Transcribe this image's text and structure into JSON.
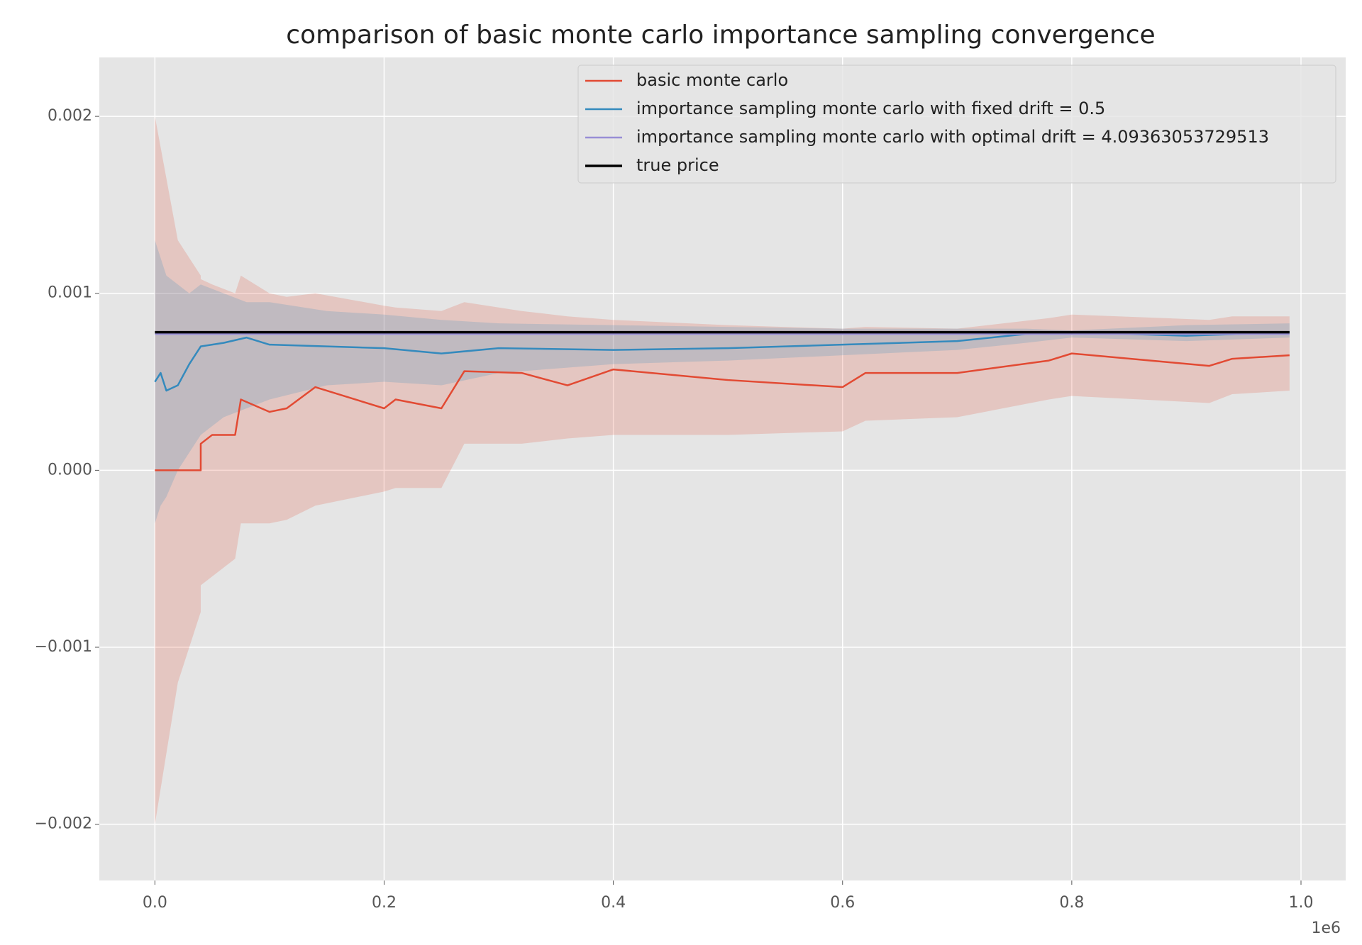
{
  "chart_data": {
    "type": "line",
    "title": "comparison of basic monte carlo importance sampling convergence",
    "x_offset_label": "1e6",
    "xlim": [
      -0.0485,
      1.039
    ],
    "ylim": [
      -0.002318,
      0.002333
    ],
    "xticks": [
      {
        "value": 0,
        "label": "0.0"
      },
      0.2,
      0.4,
      0.6,
      0.8,
      {
        "value": 1,
        "label": "1.0"
      }
    ],
    "yticks": [
      {
        "value": -0.002,
        "label": "−0.002"
      },
      {
        "value": -0.001,
        "label": "−0.001"
      },
      {
        "value": 0,
        "label": "0.000"
      },
      0.001,
      0.002
    ],
    "grid": true,
    "legend": "upper right",
    "series": [
      {
        "name": "basic monte carlo",
        "color": "#e24a33",
        "x": [
          0,
          0.02,
          0.04,
          0.04,
          0.05,
          0.07,
          0.075,
          0.1,
          0.115,
          0.14,
          0.2,
          0.21,
          0.25,
          0.27,
          0.32,
          0.36,
          0.4,
          0.5,
          0.6,
          0.62,
          0.7,
          0.78,
          0.8,
          0.92,
          0.94,
          0.99
        ],
        "values": [
          0,
          0,
          0,
          0.00015,
          0.0002,
          0.0002,
          0.0004,
          0.00033,
          0.00035,
          0.00047,
          0.00035,
          0.0004,
          0.00035,
          0.00056,
          0.00055,
          0.00048,
          0.00057,
          0.00051,
          0.00047,
          0.00055,
          0.00055,
          0.00062,
          0.00066,
          0.00059,
          0.00063,
          0.00065
        ],
        "upper": [
          0.002,
          0.0013,
          0.0011,
          0.00108,
          0.00105,
          0.001,
          0.0011,
          0.001,
          0.00098,
          0.001,
          0.00093,
          0.00092,
          0.0009,
          0.00095,
          0.0009,
          0.00087,
          0.00085,
          0.00082,
          0.0008,
          0.00081,
          0.0008,
          0.00086,
          0.00088,
          0.00085,
          0.00087,
          0.00087
        ],
        "lower": [
          -0.002,
          -0.0012,
          -0.0008,
          -0.00065,
          -0.0006,
          -0.0005,
          -0.0003,
          -0.0003,
          -0.00028,
          -0.0002,
          -0.00012,
          -0.0001,
          -0.0001,
          0.00015,
          0.00015,
          0.00018,
          0.0002,
          0.0002,
          0.00022,
          0.00028,
          0.0003,
          0.0004,
          0.00042,
          0.00038,
          0.00043,
          0.00045
        ]
      },
      {
        "name": "importance sampling monte carlo with fixed drift = 0.5",
        "color": "#348abd",
        "x": [
          0,
          0.005,
          0.01,
          0.02,
          0.03,
          0.04,
          0.06,
          0.08,
          0.1,
          0.15,
          0.2,
          0.25,
          0.3,
          0.4,
          0.5,
          0.6,
          0.7,
          0.76,
          0.8,
          0.9,
          0.99
        ],
        "values": [
          0.0005,
          0.00055,
          0.00045,
          0.00048,
          0.0006,
          0.0007,
          0.00072,
          0.00075,
          0.00071,
          0.0007,
          0.00069,
          0.00066,
          0.00069,
          0.00068,
          0.00069,
          0.00071,
          0.00073,
          0.00077,
          0.00078,
          0.00076,
          0.00078
        ],
        "upper": [
          0.0013,
          0.0012,
          0.0011,
          0.00105,
          0.001,
          0.00105,
          0.001,
          0.00095,
          0.00095,
          0.0009,
          0.00088,
          0.00085,
          0.00083,
          0.00082,
          0.00081,
          0.0008,
          0.0008,
          0.0008,
          0.00079,
          0.00082,
          0.00083
        ],
        "lower": [
          -0.0003,
          -0.0002,
          -0.00015,
          0.0,
          0.0001,
          0.0002,
          0.0003,
          0.00035,
          0.0004,
          0.00048,
          0.0005,
          0.00048,
          0.00055,
          0.0006,
          0.00062,
          0.00065,
          0.00068,
          0.00072,
          0.00075,
          0.00073,
          0.00075
        ]
      },
      {
        "name": "importance sampling monte carlo with optimal drift = 4.09363053729513",
        "color": "#988ed5",
        "x": [
          0,
          0.99
        ],
        "values": [
          0.00077,
          0.00077
        ]
      },
      {
        "name": "true price",
        "color": "#000000",
        "x": [
          0,
          0.99
        ],
        "values": [
          0.00078,
          0.00078
        ]
      }
    ]
  }
}
